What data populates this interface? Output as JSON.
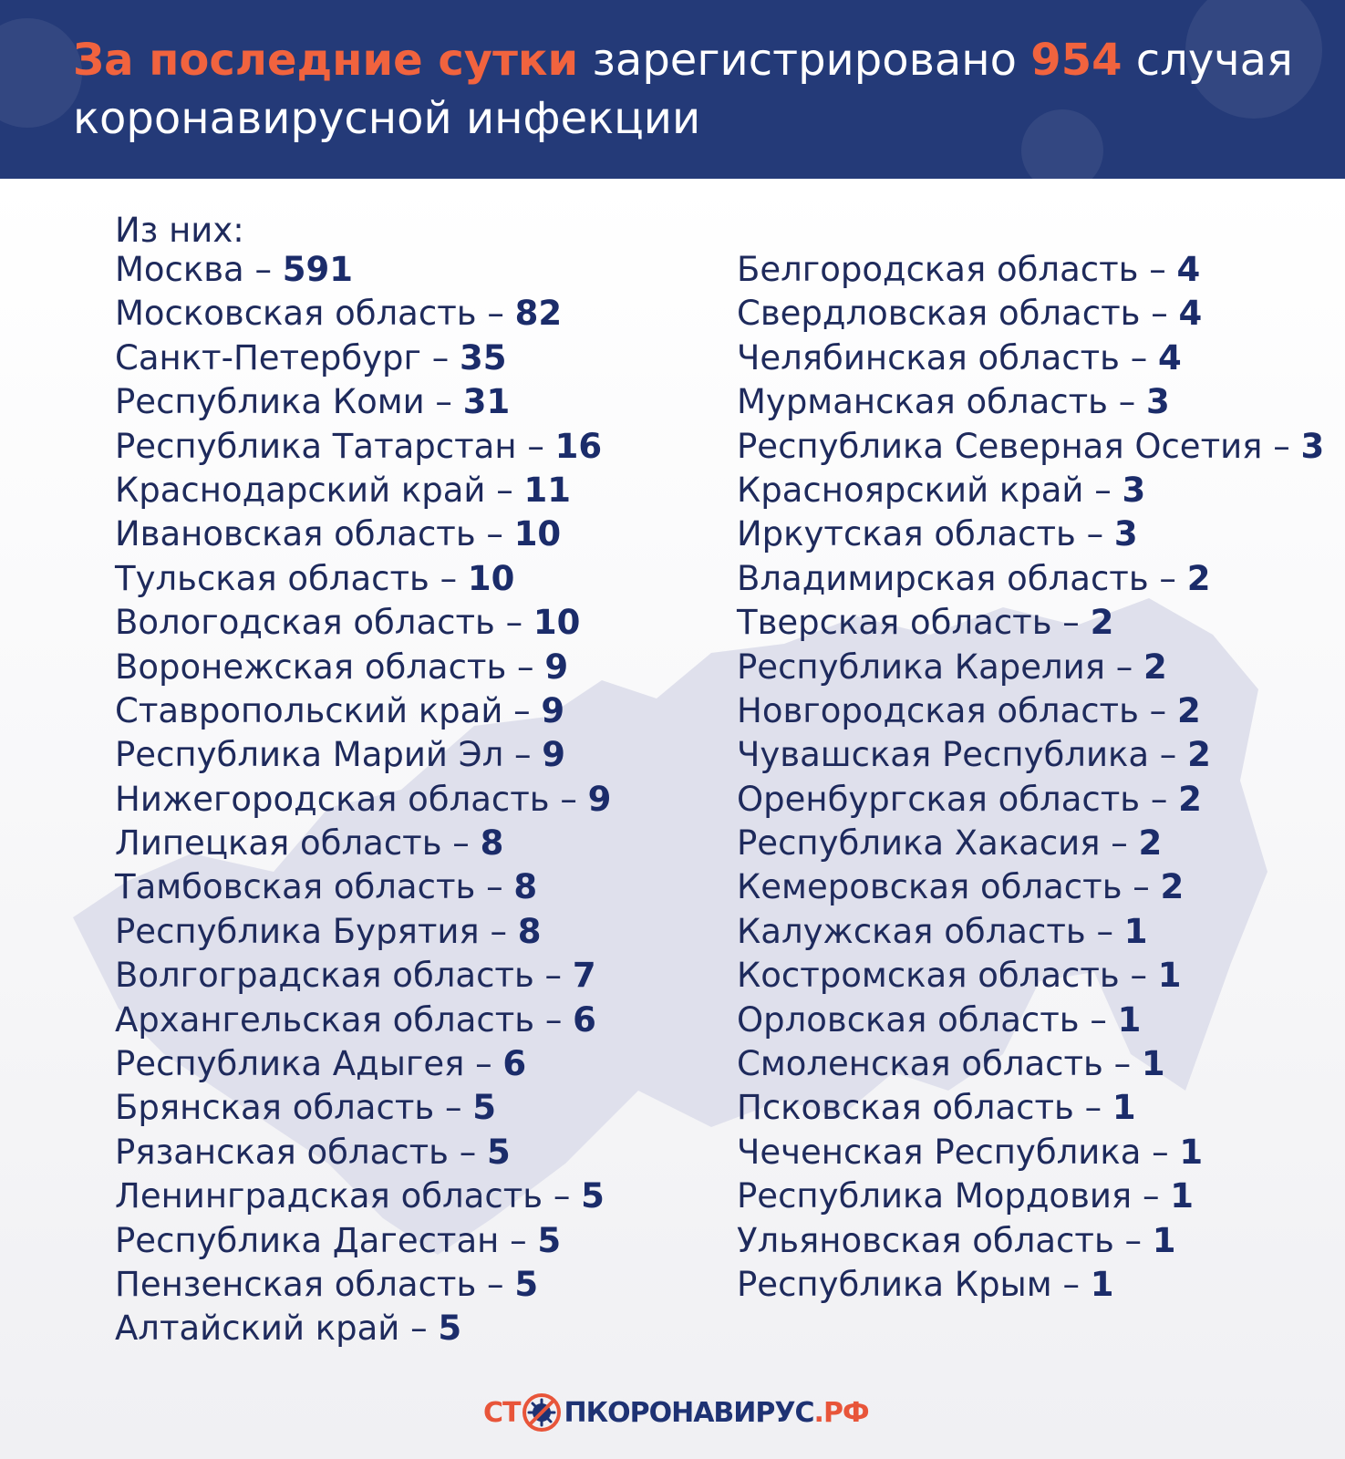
{
  "header": {
    "headline_accent": "За последние сутки",
    "headline_mid": "зарегистрировано",
    "headline_number": "954",
    "headline_rest": "случая коронавирусной инфекции"
  },
  "intro": "Из них:",
  "separator": " – ",
  "left_column": [
    {
      "region": "Москва",
      "count": "591"
    },
    {
      "region": "Московская область",
      "count": "82"
    },
    {
      "region": "Санкт-Петербург",
      "count": "35"
    },
    {
      "region": "Республика Коми",
      "count": "31"
    },
    {
      "region": "Республика Татарстан",
      "count": "16"
    },
    {
      "region": "Краснодарский край",
      "count": "11"
    },
    {
      "region": "Ивановская область",
      "count": "10"
    },
    {
      "region": "Тульская область",
      "count": "10"
    },
    {
      "region": "Вологодская область",
      "count": "10"
    },
    {
      "region": "Воронежская область",
      "count": "9"
    },
    {
      "region": "Ставропольский край",
      "count": "9"
    },
    {
      "region": "Республика Марий Эл",
      "count": "9"
    },
    {
      "region": "Нижегородская область",
      "count": "9"
    },
    {
      "region": "Липецкая область",
      "count": "8"
    },
    {
      "region": "Тамбовская область",
      "count": "8"
    },
    {
      "region": "Республика Бурятия",
      "count": "8"
    },
    {
      "region": "Волгоградская область",
      "count": "7"
    },
    {
      "region": "Архангельская область",
      "count": "6"
    },
    {
      "region": "Республика Адыгея",
      "count": "6"
    },
    {
      "region": "Брянская область",
      "count": "5"
    },
    {
      "region": "Рязанская область",
      "count": "5"
    },
    {
      "region": "Ленинградская область",
      "count": "5"
    },
    {
      "region": "Республика Дагестан",
      "count": "5"
    },
    {
      "region": "Пензенская область",
      "count": "5"
    },
    {
      "region": "Алтайский край",
      "count": "5"
    }
  ],
  "right_column": [
    {
      "region": "Белгородская область",
      "count": "4"
    },
    {
      "region": "Свердловская область",
      "count": "4"
    },
    {
      "region": "Челябинская область",
      "count": "4"
    },
    {
      "region": "Мурманская область",
      "count": "3"
    },
    {
      "region": "Республика Северная Осетия",
      "count": "3"
    },
    {
      "region": "Красноярский край",
      "count": "3"
    },
    {
      "region": "Иркутская область",
      "count": "3"
    },
    {
      "region": "Владимирская область",
      "count": "2"
    },
    {
      "region": "Тверская область",
      "count": "2"
    },
    {
      "region": "Республика Карелия",
      "count": "2"
    },
    {
      "region": "Новгородская область",
      "count": "2"
    },
    {
      "region": "Чувашская Республика",
      "count": "2"
    },
    {
      "region": "Оренбургская область",
      "count": "2"
    },
    {
      "region": "Республика Хакасия",
      "count": "2"
    },
    {
      "region": "Кемеровская область",
      "count": "2"
    },
    {
      "region": "Калужская область",
      "count": "1"
    },
    {
      "region": "Костромская область",
      "count": "1"
    },
    {
      "region": "Орловская область",
      "count": "1"
    },
    {
      "region": "Смоленская область",
      "count": "1"
    },
    {
      "region": "Псковская область",
      "count": "1"
    },
    {
      "region": "Чеченская Республика",
      "count": "1"
    },
    {
      "region": "Республика Мордовия",
      "count": "1"
    },
    {
      "region": "Ульяновская область",
      "count": "1"
    },
    {
      "region": "Республика Крым",
      "count": "1"
    }
  ],
  "footer": {
    "logo_part1": "СТ",
    "logo_part2": "ПКОРОНАВИРУС",
    "logo_part3": ".РФ",
    "icon": "virus-stop-icon"
  },
  "colors": {
    "header_bg": "#243a78",
    "accent": "#f1633e",
    "text": "#1e2a5c",
    "map": "#dadbe8"
  }
}
